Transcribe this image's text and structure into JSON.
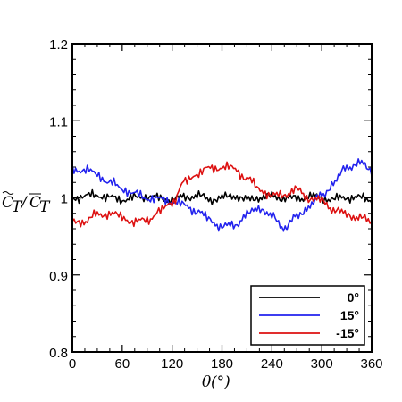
{
  "chart_data": {
    "type": "line",
    "xlabel": "θ(°)",
    "ylabel": "C̃T/C̄T",
    "xlim": [
      0,
      360
    ],
    "ylim": [
      0.8,
      1.2
    ],
    "xticks": [
      "0",
      "60",
      "120",
      "180",
      "240",
      "300",
      "360"
    ],
    "yticks": [
      "0.8",
      "0.9",
      "1",
      "1.1",
      "1.2"
    ],
    "grid": false,
    "legend_position": "bottom-right",
    "x": [
      0,
      15,
      30,
      45,
      60,
      75,
      90,
      105,
      120,
      135,
      150,
      165,
      180,
      195,
      210,
      225,
      240,
      255,
      270,
      285,
      300,
      315,
      330,
      345,
      360
    ],
    "series": [
      {
        "name": "0°",
        "color": "#000000",
        "values": [
          1.0,
          1.002,
          1.004,
          1.0,
          0.998,
          1.0,
          1.002,
          0.999,
          0.998,
          1.001,
          1.003,
          0.998,
          1.0,
          1.003,
          0.997,
          1.001,
          1.002,
          1.0,
          0.999,
          1.002,
          1.0,
          0.998,
          1.001,
          1.0,
          0.998
        ]
      },
      {
        "name": "15°",
        "color": "#2222ee",
        "values": [
          1.036,
          1.037,
          1.03,
          1.02,
          1.012,
          1.005,
          1.0,
          0.998,
          0.996,
          0.99,
          0.983,
          0.972,
          0.962,
          0.965,
          0.978,
          0.988,
          0.975,
          0.962,
          0.975,
          0.99,
          1.003,
          1.02,
          1.04,
          1.045,
          1.036
        ]
      },
      {
        "name": "-15°",
        "color": "#dd1111",
        "values": [
          0.968,
          0.97,
          0.978,
          0.98,
          0.975,
          0.968,
          0.972,
          0.982,
          0.995,
          1.02,
          1.032,
          1.038,
          1.04,
          1.038,
          1.025,
          1.012,
          1.002,
          1.005,
          1.01,
          1.0,
          0.996,
          0.985,
          0.978,
          0.975,
          0.968
        ]
      }
    ]
  }
}
